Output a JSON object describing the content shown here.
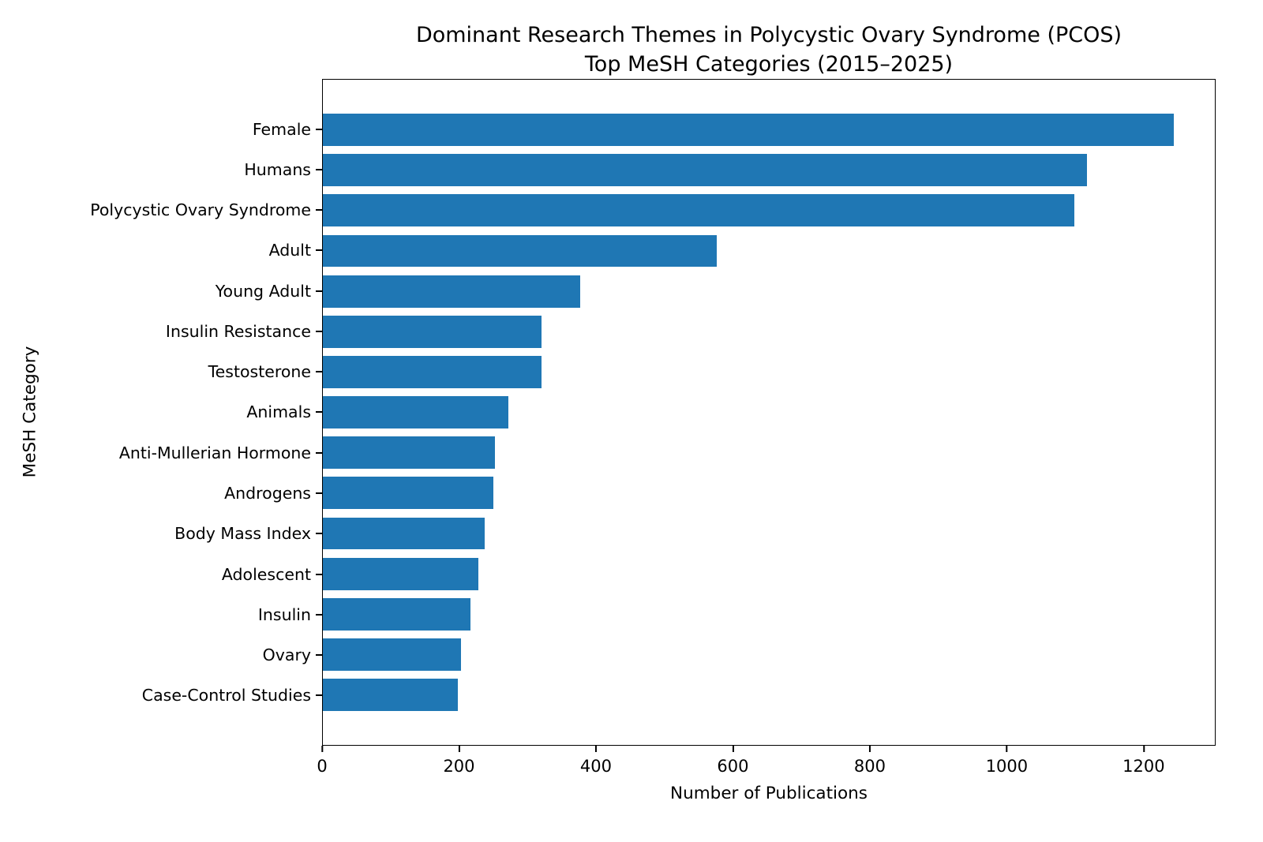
{
  "chart_data": {
    "type": "bar",
    "orientation": "horizontal",
    "title": "Dominant Research Themes in Polycystic Ovary Syndrome (PCOS)\nTop MeSH Categories (2015–2025)",
    "xlabel": "Number of Publications",
    "ylabel": "MeSH Category",
    "categories": [
      "Female",
      "Humans",
      "Polycystic Ovary Syndrome",
      "Adult",
      "Young Adult",
      "Insulin Resistance",
      "Testosterone",
      "Animals",
      "Anti-Mullerian Hormone",
      "Androgens",
      "Body Mass Index",
      "Adolescent",
      "Insulin",
      "Ovary",
      "Case-Control Studies"
    ],
    "values": [
      1245,
      1118,
      1100,
      576,
      377,
      320,
      320,
      271,
      252,
      249,
      237,
      227,
      216,
      202,
      198
    ],
    "xlim": [
      0,
      1305
    ],
    "xticks": [
      0,
      200,
      400,
      600,
      800,
      1000,
      1200
    ],
    "bar_color": "#1f77b4",
    "grid": false,
    "legend_position": "none"
  }
}
